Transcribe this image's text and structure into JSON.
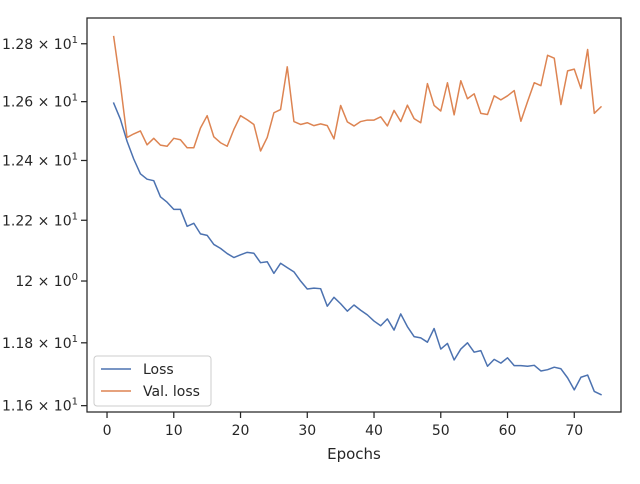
{
  "chart_data": {
    "type": "line",
    "title": "",
    "xlabel": "Epochs",
    "ylabel": "",
    "yscale": "log",
    "xlim": [
      -3,
      77
    ],
    "ylim": [
      11.58,
      12.89
    ],
    "x_ticks": [
      0,
      10,
      20,
      30,
      40,
      50,
      60,
      70
    ],
    "x_tick_labels": [
      "0",
      "10",
      "20",
      "30",
      "40",
      "50",
      "60",
      "70"
    ],
    "y_ticks": [
      11.6,
      11.8,
      12.0,
      12.2,
      12.4,
      12.6,
      12.8
    ],
    "y_tick_labels": [
      {
        "mant": "1.16",
        "exp": "1"
      },
      {
        "mant": "1.18",
        "exp": "1"
      },
      {
        "mant": "12",
        "exp": "0"
      },
      {
        "mant": "1.22",
        "exp": "1"
      },
      {
        "mant": "1.24",
        "exp": "1"
      },
      {
        "mant": "1.26",
        "exp": "1"
      },
      {
        "mant": "1.28",
        "exp": "1"
      }
    ],
    "grid": false,
    "legend_position": "lower-left",
    "x": [
      1,
      2,
      3,
      4,
      5,
      6,
      7,
      8,
      9,
      10,
      11,
      12,
      13,
      14,
      15,
      16,
      17,
      18,
      19,
      20,
      21,
      22,
      23,
      24,
      25,
      26,
      27,
      28,
      29,
      30,
      31,
      32,
      33,
      34,
      35,
      36,
      37,
      38,
      39,
      40,
      41,
      42,
      43,
      44,
      45,
      46,
      47,
      48,
      49,
      50,
      51,
      52,
      53,
      54,
      55,
      56,
      57,
      58,
      59,
      60,
      61,
      62,
      63,
      64,
      65,
      66,
      67,
      68,
      69,
      70,
      71,
      72,
      73,
      74
    ],
    "series": [
      {
        "name": "Loss",
        "color": "#4c72b0",
        "values": [
          12.595,
          12.54,
          12.465,
          12.405,
          12.355,
          12.337,
          12.332,
          12.278,
          12.26,
          12.236,
          12.236,
          12.18,
          12.19,
          12.155,
          12.15,
          12.12,
          12.107,
          12.09,
          12.077,
          12.086,
          12.094,
          12.091,
          12.06,
          12.063,
          12.025,
          12.058,
          12.044,
          12.03,
          12.0,
          11.974,
          11.977,
          11.975,
          11.918,
          11.947,
          11.926,
          11.902,
          11.922,
          11.905,
          11.89,
          11.87,
          11.855,
          11.877,
          11.841,
          11.893,
          11.852,
          11.82,
          11.816,
          11.802,
          11.846,
          11.78,
          11.798,
          11.745,
          11.78,
          11.8,
          11.77,
          11.775,
          11.725,
          11.747,
          11.735,
          11.752,
          11.727,
          11.727,
          11.725,
          11.728,
          11.71,
          11.714,
          11.722,
          11.717,
          11.688,
          11.65,
          11.69,
          11.697,
          11.645,
          11.635
        ]
      },
      {
        "name": "Val. loss",
        "color": "#dd8452",
        "values": [
          12.825,
          12.66,
          12.478,
          12.49,
          12.5,
          12.453,
          12.475,
          12.452,
          12.448,
          12.475,
          12.47,
          12.443,
          12.443,
          12.51,
          12.552,
          12.48,
          12.46,
          12.448,
          12.505,
          12.552,
          12.538,
          12.522,
          12.432,
          12.478,
          12.562,
          12.573,
          12.72,
          12.532,
          12.522,
          12.528,
          12.518,
          12.524,
          12.518,
          12.473,
          12.587,
          12.531,
          12.517,
          12.532,
          12.537,
          12.537,
          12.548,
          12.517,
          12.57,
          12.532,
          12.588,
          12.542,
          12.528,
          12.662,
          12.587,
          12.568,
          12.665,
          12.555,
          12.672,
          12.61,
          12.627,
          12.56,
          12.556,
          12.62,
          12.606,
          12.62,
          12.638,
          12.533,
          12.6,
          12.665,
          12.655,
          12.76,
          12.75,
          12.59,
          12.706,
          12.712,
          12.645,
          12.78,
          12.56,
          12.582
        ]
      }
    ]
  }
}
